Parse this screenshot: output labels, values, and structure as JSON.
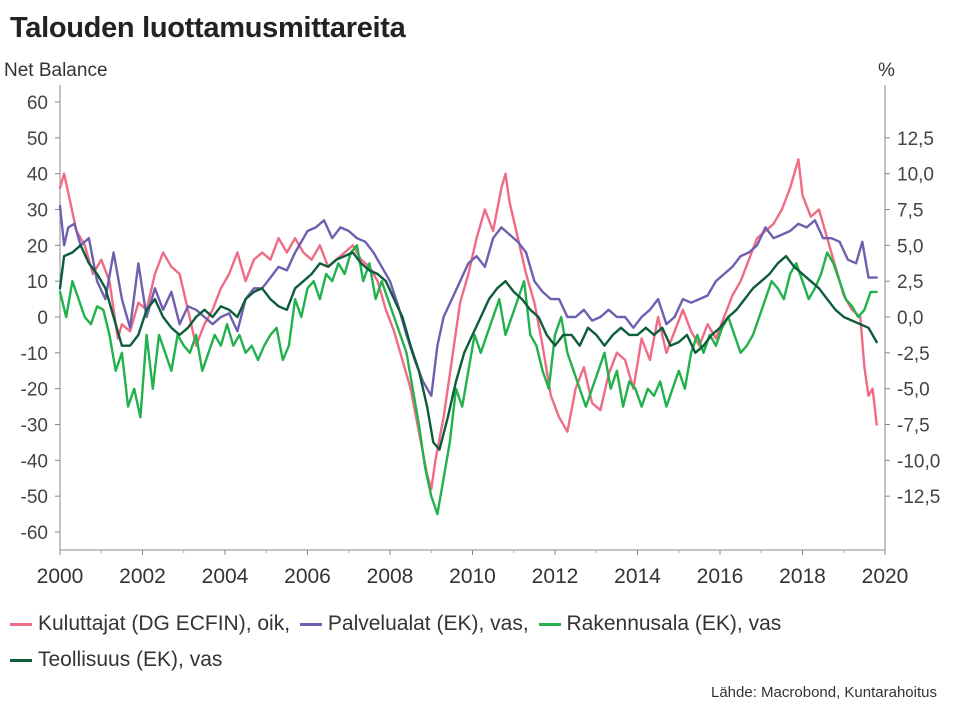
{
  "title": "Talouden luottamusmittareita",
  "source": "Lähde: Macrobond, Kuntarahoitus",
  "chart_data": {
    "type": "line",
    "title": "Talouden luottamusmittareita",
    "ylabel_left": "Net Balance",
    "ylabel_right": "%",
    "ylim_left": [
      -65,
      65
    ],
    "ylim_right": [
      -16.25,
      16.25
    ],
    "xlim": [
      2000,
      2020
    ],
    "yticks_left": [
      "60",
      "50",
      "40",
      "30",
      "20",
      "10",
      "0",
      "-10",
      "-20",
      "-30",
      "-40",
      "-50",
      "-60"
    ],
    "yticks_right": [
      "12,5",
      "10,0",
      "7,5",
      "5,0",
      "2,5",
      "0,0",
      "-2,5",
      "-5,0",
      "-7,5",
      "-10,0",
      "-12,5"
    ],
    "xticks": [
      "2000",
      "2002",
      "2004",
      "2006",
      "2008",
      "2010",
      "2012",
      "2014",
      "2016",
      "2018",
      "2020"
    ],
    "grid": false,
    "legend_position": "bottom",
    "series": [
      {
        "name": "Kuluttajat (DG ECFIN), oik",
        "axis": "right",
        "color": "#f06b86",
        "x": [
          2000.0,
          2000.1,
          2000.25,
          2000.4,
          2000.6,
          2000.8,
          2001.0,
          2001.2,
          2001.4,
          2001.5,
          2001.7,
          2001.9,
          2002.1,
          2002.3,
          2002.5,
          2002.7,
          2002.9,
          2003.1,
          2003.3,
          2003.5,
          2003.7,
          2003.9,
          2004.1,
          2004.3,
          2004.5,
          2004.7,
          2004.9,
          2005.1,
          2005.3,
          2005.5,
          2005.7,
          2005.9,
          2006.1,
          2006.3,
          2006.5,
          2006.7,
          2006.9,
          2007.1,
          2007.3,
          2007.5,
          2007.7,
          2007.9,
          2008.1,
          2008.3,
          2008.5,
          2008.7,
          2008.9,
          2009.0,
          2009.1,
          2009.3,
          2009.5,
          2009.7,
          2009.9,
          2010.1,
          2010.3,
          2010.5,
          2010.7,
          2010.8,
          2010.9,
          2011.1,
          2011.3,
          2011.5,
          2011.7,
          2011.9,
          2012.1,
          2012.3,
          2012.5,
          2012.7,
          2012.9,
          2013.1,
          2013.3,
          2013.5,
          2013.7,
          2013.9,
          2014.1,
          2014.3,
          2014.5,
          2014.7,
          2014.9,
          2015.1,
          2015.3,
          2015.5,
          2015.7,
          2015.9,
          2016.1,
          2016.3,
          2016.5,
          2016.7,
          2016.9,
          2017.1,
          2017.3,
          2017.5,
          2017.7,
          2017.9,
          2018.0,
          2018.2,
          2018.4,
          2018.6,
          2018.8,
          2019.0,
          2019.2,
          2019.4,
          2019.5,
          2019.6,
          2019.7,
          2019.8
        ],
        "y": [
          9.0,
          10.0,
          8.0,
          6.0,
          5.0,
          3.0,
          4.0,
          2.5,
          -1.5,
          -0.5,
          -1.0,
          1.0,
          0.5,
          3.0,
          4.5,
          3.5,
          3.0,
          0.5,
          -2.0,
          -0.5,
          0.5,
          2.0,
          3.0,
          4.5,
          2.5,
          4.0,
          4.5,
          4.0,
          5.5,
          4.5,
          5.5,
          4.5,
          4.0,
          5.0,
          3.5,
          4.0,
          4.5,
          5.0,
          4.0,
          3.5,
          2.5,
          0.5,
          -1.0,
          -3.0,
          -5.0,
          -8.0,
          -11.0,
          -12.0,
          -10.0,
          -7.0,
          -3.0,
          1.0,
          3.0,
          5.5,
          7.5,
          6.0,
          9.0,
          10.0,
          8.0,
          5.5,
          3.0,
          1.0,
          -2.0,
          -5.5,
          -7.0,
          -8.0,
          -5.0,
          -3.5,
          -6.0,
          -6.5,
          -4.0,
          -2.5,
          -3.0,
          -5.0,
          -1.5,
          -3.0,
          0.0,
          -2.5,
          -1.0,
          0.5,
          -1.0,
          -2.0,
          -0.5,
          -1.5,
          0.0,
          1.5,
          2.5,
          4.0,
          5.5,
          6.0,
          6.5,
          7.5,
          9.0,
          11.0,
          8.5,
          7.0,
          7.5,
          5.5,
          3.5,
          1.5,
          0.5,
          0.0,
          -3.5,
          -5.5,
          -5.0,
          -7.5
        ]
      },
      {
        "name": "Palvelualat (EK), vas",
        "axis": "left",
        "color": "#6f5fb0",
        "x": [
          2000.0,
          2000.1,
          2000.2,
          2000.35,
          2000.5,
          2000.7,
          2000.9,
          2001.1,
          2001.3,
          2001.5,
          2001.7,
          2001.9,
          2002.1,
          2002.3,
          2002.5,
          2002.7,
          2002.9,
          2003.1,
          2003.3,
          2003.5,
          2003.7,
          2003.9,
          2004.1,
          2004.3,
          2004.5,
          2004.7,
          2004.9,
          2005.1,
          2005.3,
          2005.5,
          2005.7,
          2005.9,
          2006.0,
          2006.2,
          2006.4,
          2006.6,
          2006.8,
          2007.0,
          2007.2,
          2007.4,
          2007.6,
          2007.8,
          2008.0,
          2008.2,
          2008.4,
          2008.6,
          2008.8,
          2009.0,
          2009.15,
          2009.3,
          2009.5,
          2009.7,
          2009.9,
          2010.1,
          2010.3,
          2010.5,
          2010.7,
          2010.9,
          2011.1,
          2011.3,
          2011.5,
          2011.7,
          2011.9,
          2012.1,
          2012.3,
          2012.5,
          2012.7,
          2012.9,
          2013.1,
          2013.3,
          2013.5,
          2013.7,
          2013.9,
          2014.1,
          2014.3,
          2014.5,
          2014.7,
          2014.9,
          2015.1,
          2015.3,
          2015.5,
          2015.7,
          2015.9,
          2016.1,
          2016.3,
          2016.5,
          2016.7,
          2016.9,
          2017.1,
          2017.3,
          2017.5,
          2017.7,
          2017.9,
          2018.1,
          2018.3,
          2018.5,
          2018.7,
          2018.9,
          2019.1,
          2019.3,
          2019.45,
          2019.6,
          2019.8
        ],
        "y": [
          31,
          20,
          25,
          26,
          20,
          22,
          10,
          5,
          18,
          5,
          -3,
          15,
          0,
          8,
          2,
          7,
          -2,
          3,
          2,
          0,
          -2,
          0,
          1,
          -4,
          5,
          8,
          8,
          11,
          14,
          13,
          18,
          22,
          24,
          25,
          27,
          22,
          25,
          24,
          22,
          21,
          18,
          14,
          10,
          3,
          -5,
          -12,
          -18,
          -22,
          -8,
          0,
          5,
          10,
          15,
          17,
          14,
          22,
          25,
          23,
          21,
          18,
          10,
          7,
          5,
          5,
          0,
          0,
          2,
          -1,
          0,
          2,
          0,
          0,
          -3,
          0,
          2,
          5,
          -2,
          0,
          5,
          4,
          5,
          6,
          10,
          12,
          14,
          17,
          18,
          20,
          25,
          22,
          23,
          24,
          26,
          25,
          27,
          22,
          22,
          21,
          16,
          15,
          21,
          11,
          11
        ]
      },
      {
        "name": "Rakennusala (EK), vas",
        "axis": "left",
        "color": "#22b14c",
        "x": [
          2000.0,
          2000.15,
          2000.3,
          2000.45,
          2000.6,
          2000.75,
          2000.9,
          2001.05,
          2001.2,
          2001.35,
          2001.5,
          2001.65,
          2001.8,
          2001.95,
          2002.1,
          2002.25,
          2002.4,
          2002.55,
          2002.7,
          2002.85,
          2003.0,
          2003.15,
          2003.3,
          2003.45,
          2003.6,
          2003.75,
          2003.9,
          2004.05,
          2004.2,
          2004.35,
          2004.5,
          2004.65,
          2004.8,
          2004.95,
          2005.1,
          2005.25,
          2005.4,
          2005.55,
          2005.7,
          2005.85,
          2006.0,
          2006.15,
          2006.3,
          2006.45,
          2006.6,
          2006.75,
          2006.9,
          2007.05,
          2007.2,
          2007.35,
          2007.5,
          2007.65,
          2007.8,
          2007.95,
          2008.1,
          2008.25,
          2008.4,
          2008.55,
          2008.7,
          2008.85,
          2009.0,
          2009.15,
          2009.3,
          2009.45,
          2009.6,
          2009.75,
          2009.9,
          2010.05,
          2010.2,
          2010.35,
          2010.5,
          2010.65,
          2010.8,
          2010.95,
          2011.1,
          2011.25,
          2011.4,
          2011.55,
          2011.7,
          2011.85,
          2012.0,
          2012.15,
          2012.3,
          2012.45,
          2012.6,
          2012.75,
          2012.9,
          2013.05,
          2013.2,
          2013.35,
          2013.5,
          2013.65,
          2013.8,
          2013.95,
          2014.1,
          2014.25,
          2014.4,
          2014.55,
          2014.7,
          2014.85,
          2015.0,
          2015.15,
          2015.3,
          2015.45,
          2015.6,
          2015.75,
          2015.9,
          2016.05,
          2016.2,
          2016.35,
          2016.5,
          2016.65,
          2016.8,
          2016.95,
          2017.1,
          2017.25,
          2017.4,
          2017.55,
          2017.7,
          2017.85,
          2018.0,
          2018.15,
          2018.3,
          2018.45,
          2018.6,
          2018.75,
          2018.9,
          2019.05,
          2019.2,
          2019.35,
          2019.5,
          2019.65,
          2019.8
        ],
        "y": [
          7,
          0,
          10,
          5,
          0,
          -2,
          3,
          2,
          -5,
          -15,
          -10,
          -25,
          -20,
          -28,
          -5,
          -20,
          -5,
          -10,
          -15,
          -5,
          -8,
          -10,
          -5,
          -15,
          -10,
          -5,
          -8,
          -2,
          -8,
          -5,
          -10,
          -8,
          -12,
          -8,
          -5,
          -3,
          -12,
          -8,
          5,
          0,
          8,
          10,
          5,
          12,
          10,
          15,
          12,
          18,
          20,
          10,
          15,
          5,
          10,
          5,
          0,
          -5,
          -10,
          -20,
          -30,
          -42,
          -50,
          -55,
          -45,
          -35,
          -20,
          -25,
          -15,
          -5,
          -10,
          -5,
          0,
          5,
          -5,
          0,
          5,
          10,
          -5,
          -8,
          -15,
          -20,
          -5,
          0,
          -10,
          -15,
          -20,
          -25,
          -20,
          -15,
          -10,
          -20,
          -15,
          -25,
          -18,
          -20,
          -25,
          -20,
          -22,
          -18,
          -25,
          -20,
          -15,
          -20,
          -10,
          -5,
          -10,
          -5,
          -8,
          -3,
          0,
          -5,
          -10,
          -8,
          -5,
          0,
          5,
          10,
          8,
          5,
          12,
          15,
          10,
          5,
          8,
          12,
          18,
          15,
          10,
          5,
          3,
          0,
          2,
          7,
          7
        ]
      },
      {
        "name": "Teollisuus (EK), vas",
        "axis": "left",
        "color": "#0d5c3a",
        "x": [
          2000.0,
          2000.1,
          2000.3,
          2000.5,
          2000.7,
          2000.9,
          2001.1,
          2001.3,
          2001.5,
          2001.7,
          2001.9,
          2002.1,
          2002.3,
          2002.5,
          2002.7,
          2002.9,
          2003.1,
          2003.3,
          2003.5,
          2003.7,
          2003.9,
          2004.1,
          2004.3,
          2004.5,
          2004.7,
          2004.9,
          2005.1,
          2005.3,
          2005.5,
          2005.7,
          2005.9,
          2006.1,
          2006.3,
          2006.5,
          2006.7,
          2006.9,
          2007.1,
          2007.3,
          2007.5,
          2007.7,
          2007.9,
          2008.1,
          2008.3,
          2008.5,
          2008.7,
          2008.9,
          2009.05,
          2009.2,
          2009.4,
          2009.6,
          2009.8,
          2010.0,
          2010.2,
          2010.4,
          2010.6,
          2010.8,
          2011.0,
          2011.2,
          2011.4,
          2011.6,
          2011.8,
          2012.0,
          2012.2,
          2012.4,
          2012.6,
          2012.8,
          2013.0,
          2013.2,
          2013.4,
          2013.6,
          2013.8,
          2014.0,
          2014.2,
          2014.4,
          2014.6,
          2014.8,
          2015.0,
          2015.2,
          2015.4,
          2015.6,
          2015.8,
          2016.0,
          2016.2,
          2016.4,
          2016.6,
          2016.8,
          2017.0,
          2017.2,
          2017.4,
          2017.6,
          2017.8,
          2018.0,
          2018.2,
          2018.4,
          2018.6,
          2018.8,
          2019.0,
          2019.2,
          2019.4,
          2019.6,
          2019.8
        ],
        "y": [
          8,
          17,
          18,
          20,
          15,
          12,
          8,
          0,
          -8,
          -8,
          -5,
          2,
          5,
          0,
          -3,
          -5,
          -3,
          0,
          2,
          0,
          3,
          2,
          0,
          5,
          7,
          8,
          5,
          3,
          2,
          8,
          10,
          12,
          15,
          14,
          16,
          17,
          18,
          15,
          13,
          12,
          10,
          5,
          0,
          -8,
          -15,
          -25,
          -35,
          -37,
          -28,
          -18,
          -10,
          -5,
          0,
          5,
          8,
          10,
          7,
          5,
          2,
          0,
          -5,
          -8,
          -5,
          -5,
          -8,
          -3,
          -5,
          -8,
          -5,
          -3,
          -5,
          -5,
          -3,
          -5,
          -3,
          -8,
          -7,
          -5,
          -10,
          -8,
          -5,
          -3,
          0,
          2,
          5,
          8,
          10,
          12,
          15,
          17,
          14,
          12,
          10,
          8,
          5,
          2,
          0,
          -1,
          -2,
          -3,
          -7
        ]
      }
    ]
  }
}
